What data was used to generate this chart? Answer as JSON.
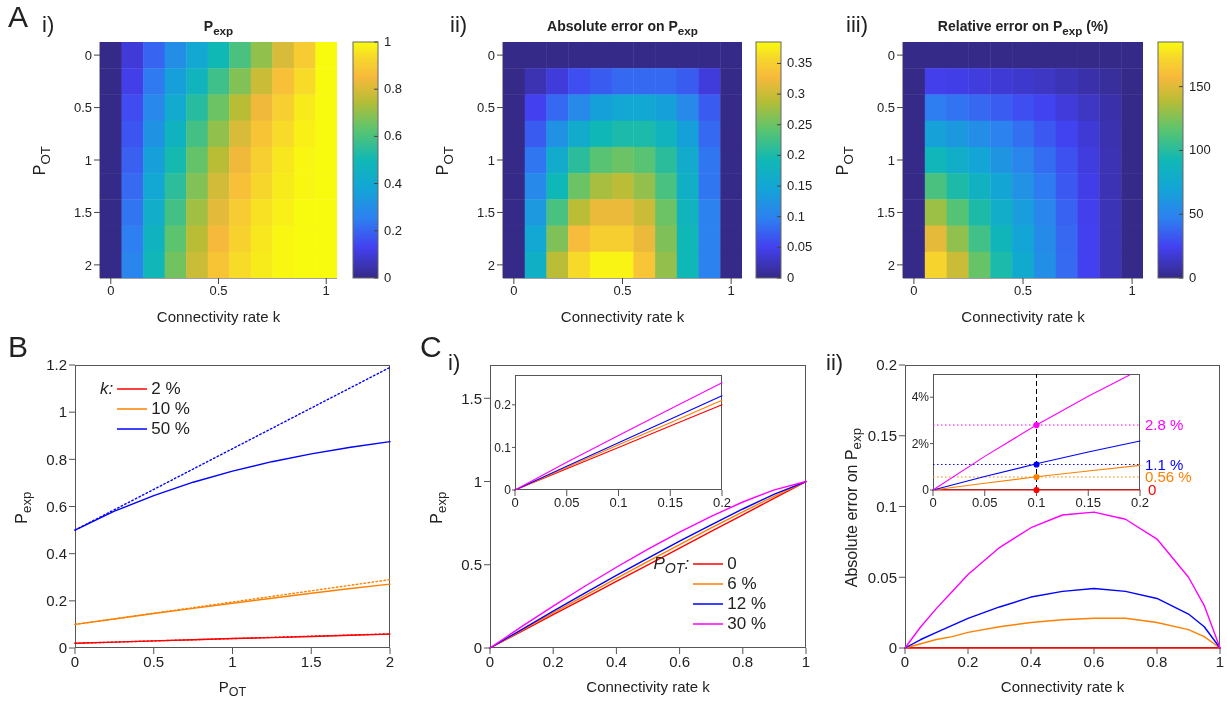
{
  "chart_data": [
    {
      "type": "heatmap",
      "title": "P$_{exp}$",
      "xlabel": "Connectivity rate k",
      "ylabel": "P$_{OT}$",
      "annotations": [
        "A",
        "i)"
      ],
      "categories": [
        "0",
        null,
        null,
        null,
        null,
        "0.5",
        null,
        null,
        null,
        null,
        "1"
      ],
      "y_categories": [
        "0",
        null,
        "0.5",
        null,
        "1",
        null,
        "1.5",
        null,
        "2"
      ],
      "cells": [
        [
          0,
          0.1,
          0.2,
          0.3,
          0.4,
          0.5,
          0.6,
          0.7,
          0.8,
          0.9,
          1
        ],
        [
          0,
          0.12,
          0.24,
          0.36,
          0.47,
          0.58,
          0.68,
          0.78,
          0.87,
          0.94,
          1
        ],
        [
          0,
          0.15,
          0.28,
          0.41,
          0.54,
          0.65,
          0.75,
          0.84,
          0.91,
          0.97,
          1
        ],
        [
          0,
          0.17,
          0.32,
          0.46,
          0.59,
          0.7,
          0.8,
          0.88,
          0.94,
          0.98,
          1
        ],
        [
          0,
          0.19,
          0.36,
          0.51,
          0.64,
          0.75,
          0.84,
          0.91,
          0.96,
          0.99,
          1
        ],
        [
          0,
          0.21,
          0.39,
          0.55,
          0.68,
          0.79,
          0.87,
          0.93,
          0.97,
          0.99,
          1
        ],
        [
          0,
          0.23,
          0.43,
          0.59,
          0.72,
          0.82,
          0.9,
          0.95,
          0.98,
          1,
          1
        ],
        [
          0,
          0.25,
          0.46,
          0.63,
          0.75,
          0.85,
          0.92,
          0.96,
          0.99,
          1,
          1
        ],
        [
          0,
          0.27,
          0.49,
          0.66,
          0.78,
          0.88,
          0.94,
          0.97,
          0.99,
          1,
          1
        ]
      ],
      "clim": [
        0,
        1
      ],
      "cticks": [
        0,
        0.2,
        0.4,
        0.6,
        0.8,
        1
      ]
    },
    {
      "type": "heatmap",
      "title": "Absolute error on P$_{exp}$",
      "xlabel": "Connectivity rate k",
      "ylabel": "P$_{OT}$",
      "annotations": [
        "ii)"
      ],
      "categories": [
        "0",
        null,
        null,
        null,
        null,
        "0.5",
        null,
        null,
        null,
        null,
        "1"
      ],
      "y_categories": [
        "0",
        null,
        "0.5",
        null,
        "1",
        null,
        "1.5",
        null,
        "2"
      ],
      "cells": [
        [
          0,
          0,
          0,
          0,
          0,
          0,
          0,
          0,
          0,
          0,
          0
        ],
        [
          0,
          0.02,
          0.04,
          0.06,
          0.07,
          0.08,
          0.08,
          0.08,
          0.07,
          0.04,
          0
        ],
        [
          0,
          0.05,
          0.08,
          0.11,
          0.14,
          0.15,
          0.15,
          0.14,
          0.11,
          0.07,
          0
        ],
        [
          0,
          0.07,
          0.12,
          0.16,
          0.19,
          0.2,
          0.2,
          0.18,
          0.14,
          0.08,
          0
        ],
        [
          0,
          0.09,
          0.16,
          0.21,
          0.24,
          0.25,
          0.24,
          0.21,
          0.16,
          0.09,
          0
        ],
        [
          0,
          0.11,
          0.19,
          0.25,
          0.28,
          0.29,
          0.27,
          0.23,
          0.17,
          0.09,
          0
        ],
        [
          0,
          0.13,
          0.23,
          0.29,
          0.32,
          0.32,
          0.3,
          0.25,
          0.18,
          0.1,
          0
        ],
        [
          0,
          0.15,
          0.26,
          0.33,
          0.35,
          0.35,
          0.32,
          0.26,
          0.19,
          0.1,
          0
        ],
        [
          0,
          0.17,
          0.29,
          0.36,
          0.38,
          0.38,
          0.34,
          0.27,
          0.19,
          0.1,
          0
        ]
      ],
      "clim": [
        0,
        0.385
      ],
      "cticks": [
        0,
        0.05,
        0.1,
        0.15,
        0.2,
        0.25,
        0.3,
        0.35
      ]
    },
    {
      "type": "heatmap",
      "title": "Relative error on P$_{exp}$ (%)",
      "xlabel": "Connectivity rate k",
      "ylabel": "P$_{OT}$",
      "annotations": [
        "iii)"
      ],
      "categories": [
        "0",
        null,
        null,
        null,
        null,
        "0.5",
        null,
        null,
        null,
        null,
        "1"
      ],
      "y_categories": [
        "0",
        null,
        "0.5",
        null,
        "1",
        null,
        "1.5",
        null,
        "2"
      ],
      "cells": [
        [
          0,
          0,
          0,
          0,
          0,
          0,
          0,
          0,
          0,
          0,
          0
        ],
        [
          0,
          23,
          22,
          20,
          18,
          16,
          14,
          11,
          8,
          5,
          0
        ],
        [
          0,
          46,
          42,
          38,
          34,
          29,
          25,
          19,
          14,
          8,
          0
        ],
        [
          0,
          68,
          62,
          55,
          48,
          41,
          33,
          25,
          18,
          9,
          0
        ],
        [
          0,
          90,
          80,
          70,
          60,
          50,
          40,
          30,
          20,
          10,
          0
        ],
        [
          0,
          111,
          97,
          84,
          71,
          58,
          45,
          33,
          22,
          10,
          0
        ],
        [
          0,
          132,
          114,
          97,
          80,
          65,
          50,
          36,
          23,
          11,
          0
        ],
        [
          0,
          152,
          129,
          108,
          89,
          70,
          53,
          38,
          24,
          11,
          0
        ],
        [
          0,
          171,
          144,
          119,
          96,
          75,
          56,
          39,
          24,
          11,
          0
        ]
      ],
      "clim": [
        0,
        185
      ],
      "cticks": [
        0,
        50,
        100,
        150
      ]
    },
    {
      "type": "line",
      "xlabel": "P$_{OT}$",
      "ylabel": "P$_{exp}$",
      "annotations": [
        "B"
      ],
      "legend": "top left",
      "legend_title": "k:",
      "x": [
        0,
        0.25,
        0.5,
        0.75,
        1,
        1.25,
        1.5,
        1.75,
        2
      ],
      "series": [
        {
          "color": "#ff0000",
          "line_style": "dotted",
          "x": [
            0,
            2
          ],
          "values": [
            0.02,
            0.06
          ]
        },
        {
          "color": "#ff8000",
          "line_style": "dotted",
          "x": [
            0,
            2
          ],
          "values": [
            0.1,
            0.29
          ]
        },
        {
          "color": "#0000ff",
          "line_style": "dotted",
          "x": [
            0,
            2
          ],
          "values": [
            0.5,
            1.19
          ]
        },
        {
          "name": "2 %",
          "color": "#ff0000",
          "values": [
            0.02,
            0.025,
            0.03,
            0.035,
            0.04,
            0.044,
            0.049,
            0.054,
            0.059
          ]
        },
        {
          "name": "10 %",
          "color": "#ff8000",
          "values": [
            0.1,
            0.123,
            0.146,
            0.168,
            0.19,
            0.211,
            0.232,
            0.252,
            0.271
          ]
        },
        {
          "name": "50 %",
          "color": "#0000ff",
          "values": [
            0.5,
            0.58,
            0.646,
            0.703,
            0.75,
            0.79,
            0.823,
            0.851,
            0.875
          ]
        }
      ],
      "xlim": [
        0,
        2
      ],
      "xticks": [
        0,
        0.5,
        1,
        1.5,
        2
      ],
      "ylim": [
        0,
        1.2
      ],
      "yticks": [
        0,
        0.2,
        0.4,
        0.6,
        0.8,
        1,
        1.2
      ],
      "line_style": "solid",
      "marker": "none"
    },
    {
      "type": "line",
      "xlabel": "Connectivity rate k",
      "ylabel": "P$_{exp}$",
      "annotations": [
        "C",
        "i)"
      ],
      "legend": "bottom right",
      "legend_title": "P$_{OT}$:",
      "x": [
        0,
        0.1,
        0.2,
        0.3,
        0.4,
        0.5,
        0.6,
        0.7,
        0.8,
        0.9,
        1
      ],
      "series": [
        {
          "name": "0",
          "color": "#ff0000",
          "values": [
            0,
            0.1,
            0.2,
            0.3,
            0.4,
            0.5,
            0.6,
            0.7,
            0.8,
            0.9,
            1
          ]
        },
        {
          "name": "6 %",
          "color": "#ff8000",
          "values": [
            0,
            0.106,
            0.211,
            0.315,
            0.418,
            0.52,
            0.621,
            0.721,
            0.818,
            0.913,
            1
          ]
        },
        {
          "name": "12 %",
          "color": "#0000ff",
          "values": [
            0,
            0.111,
            0.221,
            0.329,
            0.436,
            0.54,
            0.642,
            0.74,
            0.835,
            0.924,
            1
          ]
        },
        {
          "name": "30 %",
          "color": "#ff00ff",
          "values": [
            0,
            0.128,
            0.252,
            0.371,
            0.485,
            0.594,
            0.696,
            0.791,
            0.877,
            0.95,
            1
          ]
        }
      ],
      "xlim": [
        0,
        1
      ],
      "xticks": [
        0,
        0.2,
        0.4,
        0.6,
        0.8,
        1
      ],
      "ylim": [
        0,
        1.7
      ],
      "yticks": [
        0,
        0.5,
        1,
        1.5
      ],
      "line_style": "solid",
      "marker": "none"
    },
    {
      "type": "line",
      "x": [
        0,
        0.05,
        0.1,
        0.15,
        0.2
      ],
      "series": [
        {
          "color": "#ff0000",
          "values": [
            0,
            0.05,
            0.1,
            0.15,
            0.2
          ]
        },
        {
          "color": "#ff8000",
          "values": [
            0,
            0.053,
            0.106,
            0.158,
            0.211
          ]
        },
        {
          "color": "#0000ff",
          "values": [
            0,
            0.056,
            0.111,
            0.166,
            0.221
          ]
        },
        {
          "color": "#ff00ff",
          "values": [
            0,
            0.065,
            0.128,
            0.19,
            0.252
          ]
        }
      ],
      "xlim": [
        0,
        0.2
      ],
      "xticks": [
        0,
        0.05,
        0.1,
        0.15,
        0.2
      ],
      "ylim": [
        0,
        0.27
      ],
      "yticks": [
        0,
        0.1,
        0.2
      ],
      "line_style": "solid",
      "marker": "none"
    },
    {
      "type": "line",
      "xlabel": "Connectivity rate k",
      "ylabel": "Absolute error on P$_{exp}$",
      "annotations": [
        "ii)"
      ],
      "x": [
        0,
        0.05,
        0.1,
        0.15,
        0.2,
        0.3,
        0.4,
        0.5,
        0.6,
        0.7,
        0.8,
        0.9,
        0.95,
        1
      ],
      "series": [
        {
          "color": "#ff0000",
          "values": [
            0,
            0,
            0,
            0,
            0,
            0,
            0,
            0,
            0,
            0,
            0,
            0,
            0,
            0
          ]
        },
        {
          "color": "#ff8000",
          "values": [
            0,
            0.003,
            0.006,
            0.008,
            0.011,
            0.015,
            0.018,
            0.02,
            0.021,
            0.021,
            0.018,
            0.013,
            0.008,
            0
          ]
        },
        {
          "color": "#0000ff",
          "values": [
            0,
            0.006,
            0.011,
            0.016,
            0.021,
            0.029,
            0.036,
            0.04,
            0.042,
            0.04,
            0.035,
            0.024,
            0.015,
            0
          ]
        },
        {
          "color": "#ff00ff",
          "values": [
            0,
            0.015,
            0.028,
            0.04,
            0.052,
            0.071,
            0.085,
            0.094,
            0.096,
            0.091,
            0.077,
            0.05,
            0.03,
            0
          ]
        }
      ],
      "xlim": [
        0,
        1
      ],
      "xticks": [
        0,
        0.2,
        0.4,
        0.6,
        0.8,
        1
      ],
      "ylim": [
        0,
        0.2
      ],
      "yticks": [
        0,
        0.05,
        0.1,
        0.15,
        0.2
      ],
      "line_style": "solid",
      "marker": "none"
    },
    {
      "type": "line",
      "x": [
        0,
        0.05,
        0.1,
        0.15,
        0.2
      ],
      "series": [
        {
          "color": "#ff0000",
          "values": [
            0,
            0,
            0,
            0,
            0
          ]
        },
        {
          "color": "#ff8000",
          "values": [
            0,
            0.29,
            0.57,
            0.82,
            1.06
          ]
        },
        {
          "color": "#0000ff",
          "values": [
            0,
            0.58,
            1.13,
            1.64,
            2.11
          ]
        },
        {
          "color": "#ff00ff",
          "x": [
            0,
            0.05,
            0.1,
            0.15,
            0.19
          ],
          "values": [
            0,
            1.45,
            2.8,
            4.04,
            4.96
          ]
        },
        {
          "type": "scatter",
          "marker": "circle",
          "x": [
            0.1,
            0.1,
            0.1,
            0.1
          ],
          "values": [
            2.8,
            1.1,
            0.56,
            0
          ],
          "colors": [
            "#ff00ff",
            "#0000ff",
            "#ff8000",
            "#ff0000"
          ]
        }
      ],
      "ref_lines": [
        {
          "axis": "x",
          "value": 0.1,
          "color": "#000000",
          "line_style": "dashed"
        },
        {
          "axis": "y",
          "value": 2.8,
          "label": "2.8 %",
          "color": "#ff00ff",
          "line_style": "dotted"
        },
        {
          "axis": "y",
          "value": 1.1,
          "label": "1.1 %",
          "color": "#0000ff",
          "line_style": "dotted"
        },
        {
          "axis": "y",
          "value": 0.56,
          "label": "0.56 %",
          "color": "#ff8000",
          "line_style": "dotted"
        }
      ],
      "annotations": [
        {
          "text": "0",
          "x": 0.2,
          "y": 0
        }
      ],
      "xlim": [
        0,
        0.2
      ],
      "xticks": [
        0,
        0.05,
        0.1,
        0.15,
        0.2
      ],
      "ylim": [
        0,
        5
      ],
      "yticks": [
        {
          "value": 0,
          "label": "0"
        },
        {
          "value": 2,
          "label": "2%"
        },
        {
          "value": 4,
          "label": "4%"
        }
      ],
      "line_style": "solid",
      "marker": "none"
    }
  ]
}
